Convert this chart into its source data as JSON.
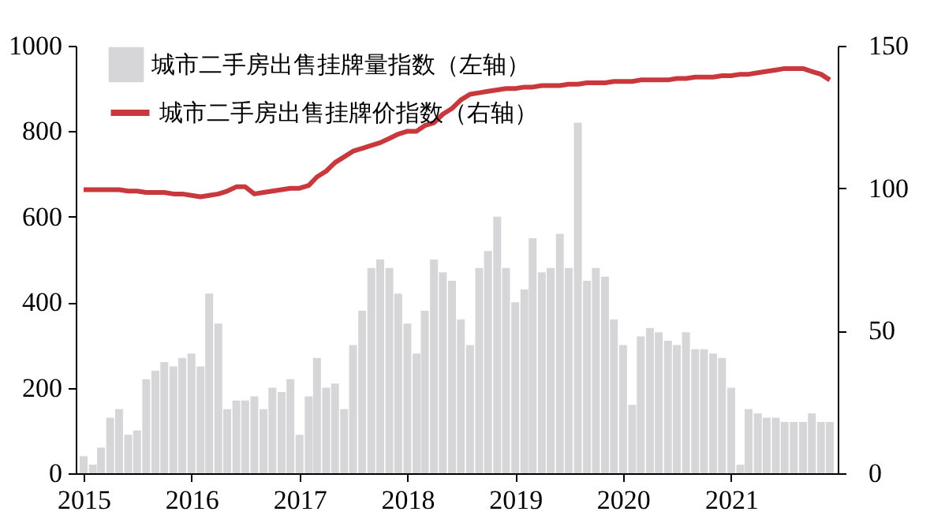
{
  "chart_data": {
    "type": "bar",
    "x": [
      "2015-01",
      "2015-02",
      "2015-03",
      "2015-04",
      "2015-05",
      "2015-06",
      "2015-07",
      "2015-08",
      "2015-09",
      "2015-10",
      "2015-11",
      "2015-12",
      "2016-01",
      "2016-02",
      "2016-03",
      "2016-04",
      "2016-05",
      "2016-06",
      "2016-07",
      "2016-08",
      "2016-09",
      "2016-10",
      "2016-11",
      "2016-12",
      "2017-01",
      "2017-02",
      "2017-03",
      "2017-04",
      "2017-05",
      "2017-06",
      "2017-07",
      "2017-08",
      "2017-09",
      "2017-10",
      "2017-11",
      "2017-12",
      "2018-01",
      "2018-02",
      "2018-03",
      "2018-04",
      "2018-05",
      "2018-06",
      "2018-07",
      "2018-08",
      "2018-09",
      "2018-10",
      "2018-11",
      "2018-12",
      "2019-01",
      "2019-02",
      "2019-03",
      "2019-04",
      "2019-05",
      "2019-06",
      "2019-07",
      "2019-08",
      "2019-09",
      "2019-10",
      "2019-11",
      "2019-12",
      "2020-01",
      "2020-02",
      "2020-03",
      "2020-04",
      "2020-05",
      "2020-06",
      "2020-07",
      "2020-08",
      "2020-09",
      "2020-10",
      "2020-11",
      "2020-12",
      "2021-01",
      "2021-02",
      "2021-03",
      "2021-04",
      "2021-05",
      "2021-06",
      "2021-07",
      "2021-08",
      "2021-09",
      "2021-10",
      "2021-11",
      "2021-12"
    ],
    "series": [
      {
        "name": "城市二手房出售挂牌量指数（左轴）",
        "color": "#d6d6d8",
        "values": [
          40,
          20,
          60,
          130,
          150,
          90,
          100,
          220,
          240,
          260,
          250,
          270,
          280,
          250,
          420,
          350,
          150,
          170,
          170,
          180,
          150,
          200,
          190,
          220,
          90,
          180,
          270,
          200,
          210,
          150,
          300,
          380,
          480,
          500,
          480,
          420,
          350,
          280,
          380,
          500,
          470,
          450,
          360,
          300,
          480,
          520,
          600,
          480,
          400,
          430,
          550,
          470,
          480,
          560,
          480,
          820,
          450,
          480,
          460,
          360,
          300,
          160,
          320,
          340,
          330,
          310,
          300,
          330,
          290,
          290,
          280,
          270,
          200,
          20,
          150,
          140,
          130,
          130,
          120,
          120,
          120,
          140,
          120,
          120
        ]
      },
      {
        "name": "城市二手房出售挂牌价指数（右轴）",
        "type": "line",
        "axis": "y2",
        "color": "#c8383c",
        "values": [
          99.5,
          99.5,
          99.5,
          99.5,
          99.5,
          99,
          99,
          98.5,
          98.5,
          98.5,
          98,
          98,
          97.5,
          97,
          97.5,
          98,
          99,
          100.5,
          100.5,
          98,
          98.5,
          99,
          99.5,
          100,
          100,
          101,
          104,
          106,
          109,
          111,
          113,
          114,
          115,
          116,
          117.5,
          119,
          120,
          120,
          122,
          123,
          126,
          128,
          131,
          133,
          133.5,
          134,
          134.5,
          135,
          135,
          135.5,
          135.5,
          136,
          136,
          136,
          136.5,
          136.5,
          137,
          137,
          137,
          137.5,
          137.5,
          137.5,
          138,
          138,
          138,
          138,
          138.5,
          138.5,
          139,
          139,
          139,
          139.5,
          139.5,
          140,
          140,
          140.5,
          141,
          141.5,
          142,
          142,
          142,
          141,
          140,
          138
        ]
      }
    ],
    "xlim": [
      "2015-01",
      "2021-12"
    ],
    "xticks": [
      "2015",
      "2016",
      "2017",
      "2018",
      "2019",
      "2020",
      "2021"
    ],
    "ylim": [
      0,
      1000
    ],
    "yticks": [
      0,
      200,
      400,
      600,
      800,
      1000
    ],
    "y2lim": [
      0,
      150
    ],
    "y2ticks": [
      0,
      50,
      100,
      150
    ],
    "grid": false,
    "legend": "top left"
  }
}
